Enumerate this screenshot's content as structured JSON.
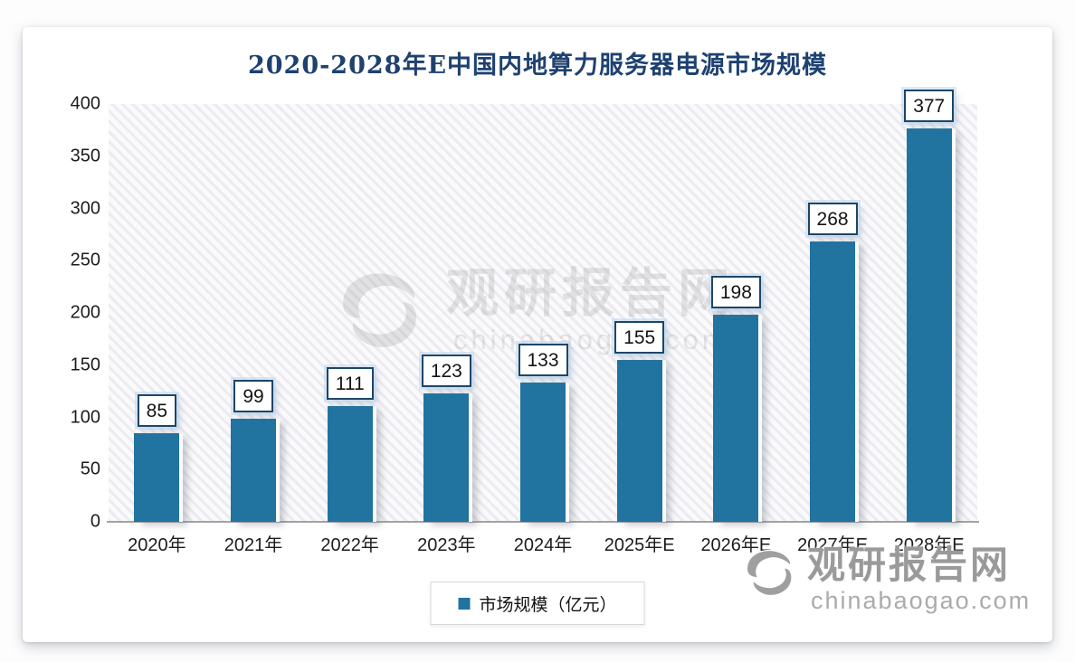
{
  "chart_data": {
    "type": "bar",
    "title": "2020-2028年E中国内地算力服务器电源市场规模",
    "categories": [
      "2020年",
      "2021年",
      "2022年",
      "2023年",
      "2024年",
      "2025年E",
      "2026年E",
      "2027年E",
      "2028年E"
    ],
    "values": [
      85,
      99,
      111,
      123,
      133,
      155,
      198,
      268,
      377
    ],
    "series_name": "市场规模（亿元）",
    "ylabel": "",
    "xlabel": "",
    "ylim": [
      0,
      400
    ],
    "yticks": [
      0,
      50,
      100,
      150,
      200,
      250,
      300,
      350,
      400
    ],
    "grid": false,
    "data_labels": true,
    "legend_position": "bottom",
    "bar_color": "#2173a0",
    "title_color": "#1e4170",
    "plot_background": "diagonal-hatch"
  },
  "legend": {
    "label": "市场规模（亿元）",
    "marker_color": "#2173a0"
  },
  "watermark": {
    "brand": "观研报告网",
    "domain": "chinabaogao.com"
  }
}
